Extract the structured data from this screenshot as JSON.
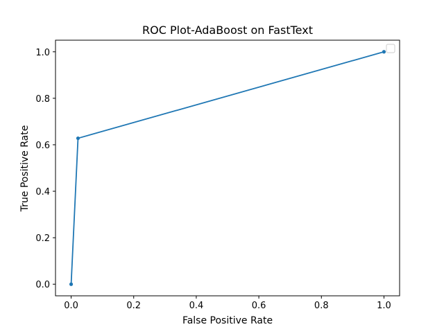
{
  "chart_data": {
    "type": "line",
    "title": "ROC Plot-AdaBoost on FastText",
    "xlabel": "False Positive Rate",
    "ylabel": "True Positive Rate",
    "xlim": [
      -0.05,
      1.05
    ],
    "ylim": [
      -0.05,
      1.05
    ],
    "xticks": [
      0.0,
      0.2,
      0.4,
      0.6,
      0.8,
      1.0
    ],
    "yticks": [
      0.0,
      0.2,
      0.4,
      0.6,
      0.8,
      1.0
    ],
    "xtick_labels": [
      "0.0",
      "0.2",
      "0.4",
      "0.6",
      "0.8",
      "1.0"
    ],
    "ytick_labels": [
      "0.0",
      "0.2",
      "0.4",
      "0.6",
      "0.8",
      "1.0"
    ],
    "grid": false,
    "legend": {
      "placement": "top-right",
      "entries": []
    },
    "series": [
      {
        "color": "#1f77b4",
        "marker": "dot",
        "x": [
          0.0,
          0.022,
          1.0
        ],
        "y": [
          0.0,
          0.628,
          1.0
        ]
      }
    ]
  }
}
